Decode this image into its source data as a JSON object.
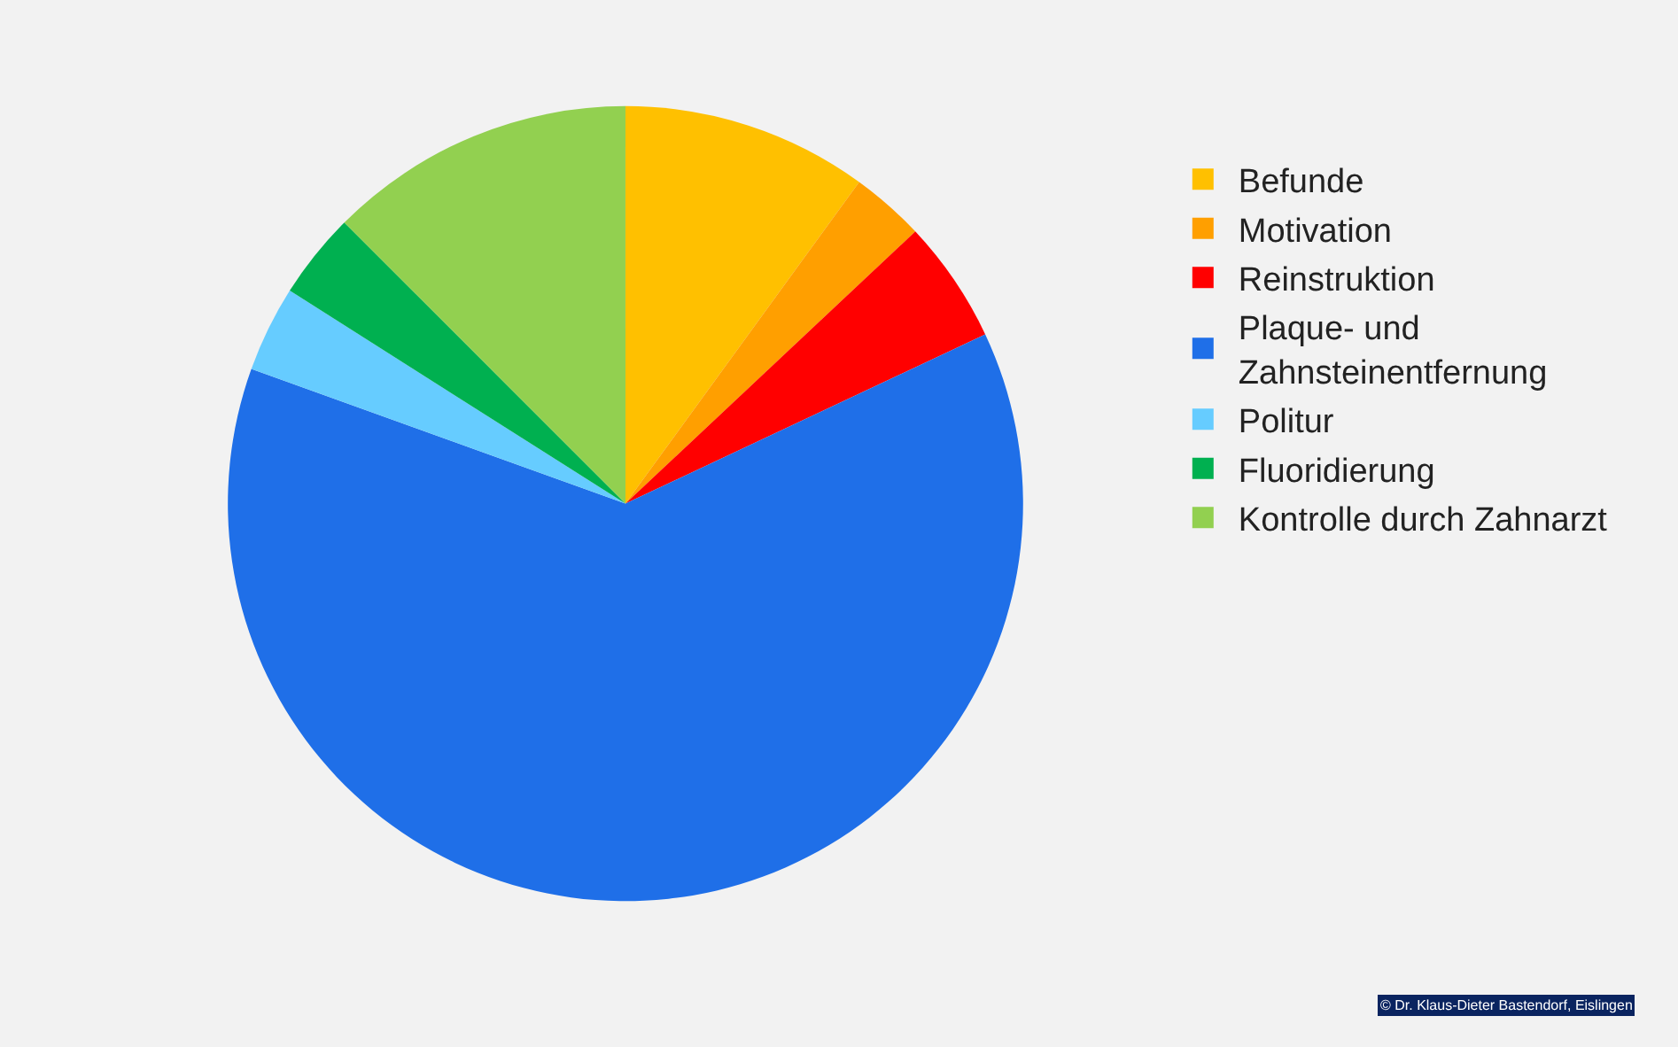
{
  "chart_data": {
    "type": "pie",
    "categories": [
      "Befunde",
      "Motivation",
      "Reinstruktion",
      "Plaque- und Zahnsteinentfernung",
      "Politur",
      "Fluoridierung",
      "Kontrolle durch Zahnarzt"
    ],
    "values": [
      10,
      3,
      5,
      62.5,
      3.5,
      3.5,
      12.5
    ],
    "colors": [
      "#ffc000",
      "#ff9f00",
      "#ff0000",
      "#1f6fe8",
      "#66ccff",
      "#00b050",
      "#92d050"
    ],
    "legend": "right",
    "annotations": [
      "© Dr. Klaus-Dieter Bastendorf, Eislingen"
    ]
  }
}
